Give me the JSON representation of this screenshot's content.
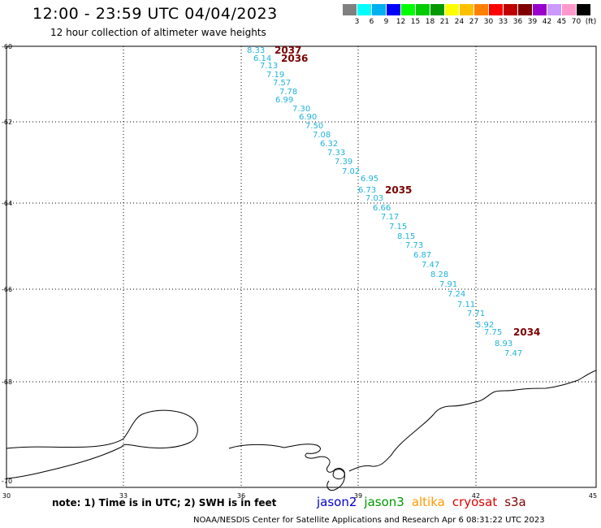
{
  "title": "12:00 - 23:59 UTC 04/04/2023",
  "subtitle": "12 hour collection of altimeter wave heights",
  "legend": {
    "colors": [
      "#808080",
      "#00ffff",
      "#00b0f0",
      "#0000ff",
      "#00ff00",
      "#00cc00",
      "#009900",
      "#ffff00",
      "#ffc000",
      "#ff8000",
      "#ff0000",
      "#c00000",
      "#800000",
      "#9900cc",
      "#cc99ff",
      "#ff99cc",
      "#000000"
    ],
    "labels": [
      "3",
      "6",
      "9",
      "12",
      "15",
      "18",
      "21",
      "24",
      "27",
      "30",
      "33",
      "36",
      "39",
      "42",
      "45",
      "70",
      "(ft)"
    ]
  },
  "map": {
    "lon_range": [
      30,
      45
    ],
    "lat_range": [
      -70,
      -60
    ],
    "lon_ticks": [
      "30",
      "33",
      "36",
      "39",
      "42",
      "45"
    ],
    "lat_ticks": [
      "-60",
      "-62",
      "-64",
      "-66",
      "-68",
      "-70"
    ],
    "wave_heights": [
      "8.33",
      "6.14",
      "7.13",
      "7.19",
      "7.57",
      "7.78",
      "6.99",
      "7.30",
      "6.90",
      "7.50",
      "7.08",
      "6.32",
      "7.33",
      "7.39",
      "7.02",
      "6.95",
      "6.73",
      "7.03",
      "6.66",
      "7.17",
      "7.15",
      "8.15",
      "7.73",
      "6.87",
      "7.47",
      "8.28",
      "7.91",
      "7.24",
      "7.11",
      "7.71",
      "5.92",
      "7.75",
      "8.93",
      "7.47"
    ],
    "pass_labels": [
      "2037",
      "2036",
      "2035",
      "2034"
    ]
  },
  "note": "note: 1) Time is in UTC; 2) SWH is in feet",
  "satellites": [
    {
      "name": "jason2",
      "color": "#0000cc"
    },
    {
      "name": "jason3",
      "color": "#009900"
    },
    {
      "name": "altika",
      "color": "#ff9900"
    },
    {
      "name": "cryosat",
      "color": "#dd0000"
    },
    {
      "name": "s3a",
      "color": "#800000"
    }
  ],
  "footer": "NOAA/NESDIS Center for Satellite Applications and Research   Apr  6 08:31:22 UTC 2023"
}
